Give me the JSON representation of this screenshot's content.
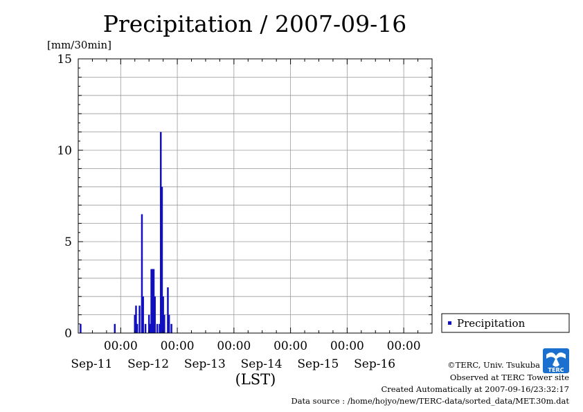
{
  "chart_data": {
    "type": "bar",
    "title": "Precipitation / 2007-09-16",
    "ylabel": "[mm/30min]",
    "xlabel": "(LST)",
    "ylim": [
      0,
      15
    ],
    "y_ticks": [
      0,
      5,
      10,
      15
    ],
    "x_range": [
      "2007-09-10T06:00",
      "2007-09-16T12:00"
    ],
    "x_ticks": [
      {
        "time": "2007-09-11T00:00",
        "hour": "00:00",
        "date": "Sep-11"
      },
      {
        "time": "2007-09-12T00:00",
        "hour": "00:00",
        "date": "Sep-12"
      },
      {
        "time": "2007-09-13T00:00",
        "hour": "00:00",
        "date": "Sep-13"
      },
      {
        "time": "2007-09-14T00:00",
        "hour": "00:00",
        "date": "Sep-14"
      },
      {
        "time": "2007-09-15T00:00",
        "hour": "00:00",
        "date": "Sep-15"
      },
      {
        "time": "2007-09-16T00:00",
        "hour": "00:00",
        "date": "Sep-16"
      }
    ],
    "grid": true,
    "legend_position": "right",
    "series": [
      {
        "name": "Precipitation",
        "color": "#1010c0",
        "points": [
          {
            "t": "2007-09-10T07:00",
            "v": 0.5
          },
          {
            "t": "2007-09-10T21:30",
            "v": 0.5
          },
          {
            "t": "2007-09-11T06:00",
            "v": 1.0
          },
          {
            "t": "2007-09-11T06:30",
            "v": 1.5
          },
          {
            "t": "2007-09-11T07:00",
            "v": 0.5
          },
          {
            "t": "2007-09-11T08:00",
            "v": 1.5
          },
          {
            "t": "2007-09-11T09:00",
            "v": 6.5
          },
          {
            "t": "2007-09-11T09:30",
            "v": 2.0
          },
          {
            "t": "2007-09-11T10:30",
            "v": 0.5
          },
          {
            "t": "2007-09-11T12:00",
            "v": 1.0
          },
          {
            "t": "2007-09-11T12:30",
            "v": 0.5
          },
          {
            "t": "2007-09-11T13:00",
            "v": 3.5
          },
          {
            "t": "2007-09-11T13:30",
            "v": 3.5
          },
          {
            "t": "2007-09-11T14:00",
            "v": 3.5
          },
          {
            "t": "2007-09-11T14:30",
            "v": 2.0
          },
          {
            "t": "2007-09-11T15:30",
            "v": 0.5
          },
          {
            "t": "2007-09-11T16:30",
            "v": 0.5
          },
          {
            "t": "2007-09-11T17:00",
            "v": 11.0
          },
          {
            "t": "2007-09-11T17:30",
            "v": 8.0
          },
          {
            "t": "2007-09-11T18:00",
            "v": 2.0
          },
          {
            "t": "2007-09-11T18:30",
            "v": 1.0
          },
          {
            "t": "2007-09-11T20:00",
            "v": 2.5
          },
          {
            "t": "2007-09-11T20:30",
            "v": 1.0
          },
          {
            "t": "2007-09-11T21:30",
            "v": 0.5
          }
        ]
      }
    ]
  },
  "credits": {
    "copyright": "©TERC, Univ. Tsukuba",
    "site": "Observed at TERC Tower site",
    "created": "Created Automatically at 2007-09-16/23:32:17",
    "source": "Data source : /home/hojyo/new/TERC-data/sorted_data/MET.30m.dat"
  },
  "logo": {
    "text": "TERC",
    "color": "#1a6fcf"
  }
}
